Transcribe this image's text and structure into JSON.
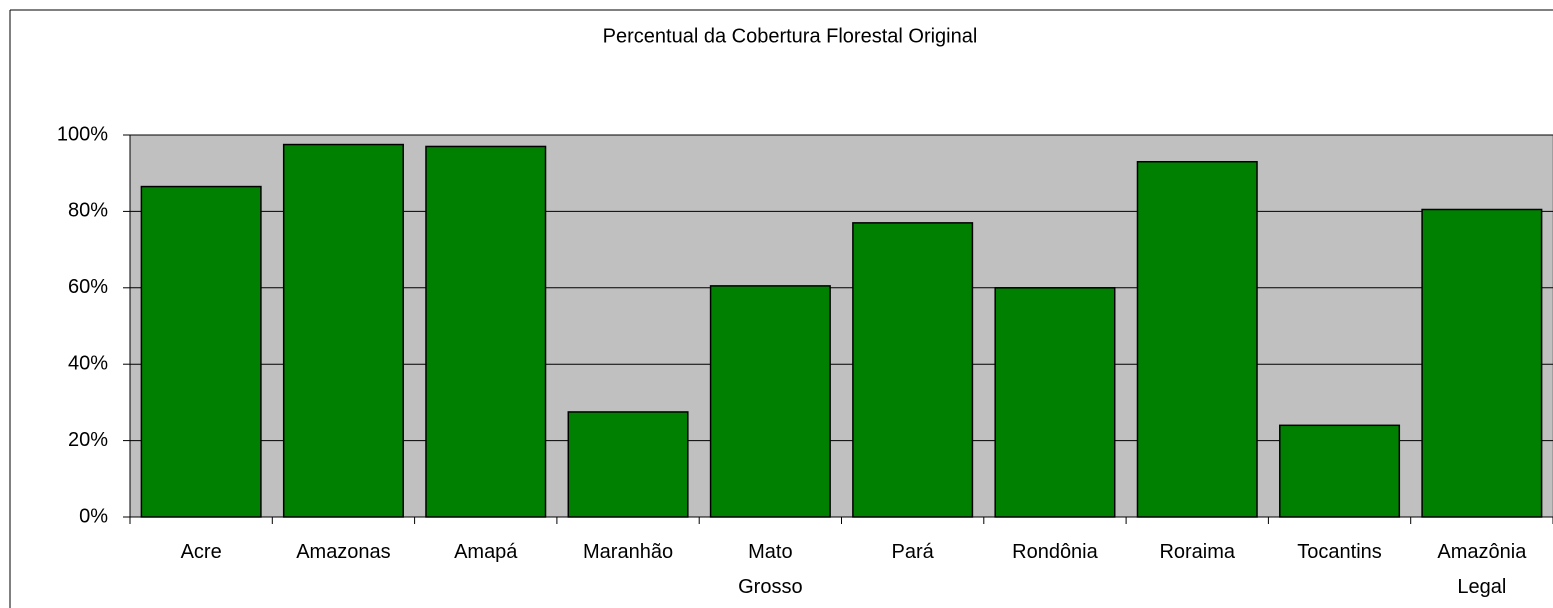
{
  "chart_data": {
    "type": "bar",
    "title": "Percentual da Cobertura Florestal Original",
    "categories": [
      "Acre",
      "Amazonas",
      "Amapá",
      "Maranhão",
      "Mato Grosso",
      "Pará",
      "Rondônia",
      "Roraima",
      "Tocantins",
      "Amazônia Legal"
    ],
    "values": [
      86.5,
      97.5,
      97,
      27.5,
      60.5,
      77,
      60,
      93,
      24,
      80.5
    ],
    "color": "#008000",
    "ylim": [
      0,
      100
    ],
    "yticks": [
      {
        "value": 0,
        "label": "0%"
      },
      {
        "value": 20,
        "label": "20%"
      },
      {
        "value": 40,
        "label": "40%"
      },
      {
        "value": 60,
        "label": "60%"
      },
      {
        "value": 80,
        "label": "80%"
      },
      {
        "value": 100,
        "label": "100%"
      }
    ],
    "grid": true
  }
}
